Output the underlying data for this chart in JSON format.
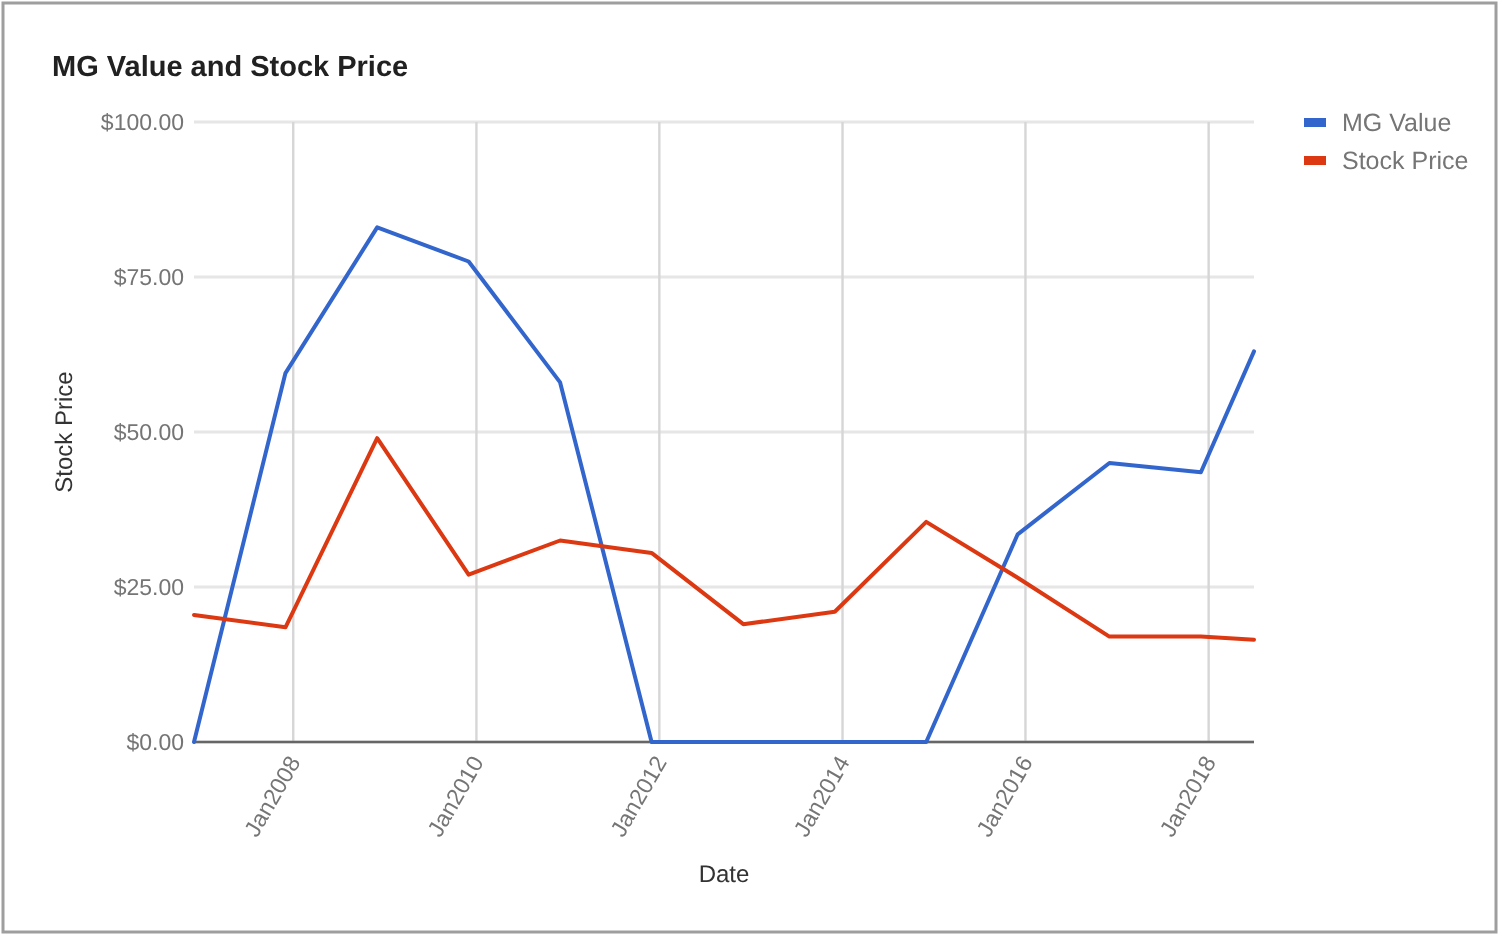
{
  "chart_data": {
    "type": "line",
    "title": "MG Value and Stock Price",
    "xlabel": "Date",
    "ylabel": "Stock Price",
    "x": [
      "2006-12",
      "2007-12",
      "2008-12",
      "2009-12",
      "2010-12",
      "2011-12",
      "2012-12",
      "2013-12",
      "2014-12",
      "2015-12",
      "2016-12",
      "2017-12",
      "2018-07"
    ],
    "series": [
      {
        "name": "MG Value",
        "color": "#3366cc",
        "values": [
          0,
          59.5,
          83,
          77.5,
          58,
          0,
          0,
          0,
          0,
          33.5,
          45,
          43.5,
          63
        ]
      },
      {
        "name": "Stock Price",
        "color": "#dc3912",
        "values": [
          20.5,
          18.5,
          49,
          27,
          32.5,
          30.5,
          19,
          21,
          35.5,
          26.5,
          17,
          17,
          16.5
        ]
      }
    ],
    "xlim": [
      "2006-12",
      "2018-07"
    ],
    "xticks": [
      {
        "value": "2008-01",
        "label": "Jan2008"
      },
      {
        "value": "2010-01",
        "label": "Jan2010"
      },
      {
        "value": "2012-01",
        "label": "Jan2012"
      },
      {
        "value": "2014-01",
        "label": "Jan2014"
      },
      {
        "value": "2016-01",
        "label": "Jan2016"
      },
      {
        "value": "2018-01",
        "label": "Jan2018"
      }
    ],
    "ylim": [
      0,
      100
    ],
    "yticks": [
      {
        "value": 0,
        "label": "$0.00"
      },
      {
        "value": 25,
        "label": "$25.00"
      },
      {
        "value": 50,
        "label": "$50.00"
      },
      {
        "value": 75,
        "label": "$75.00"
      },
      {
        "value": 100,
        "label": "$100.00"
      }
    ],
    "grid": true,
    "legend": "top right"
  }
}
